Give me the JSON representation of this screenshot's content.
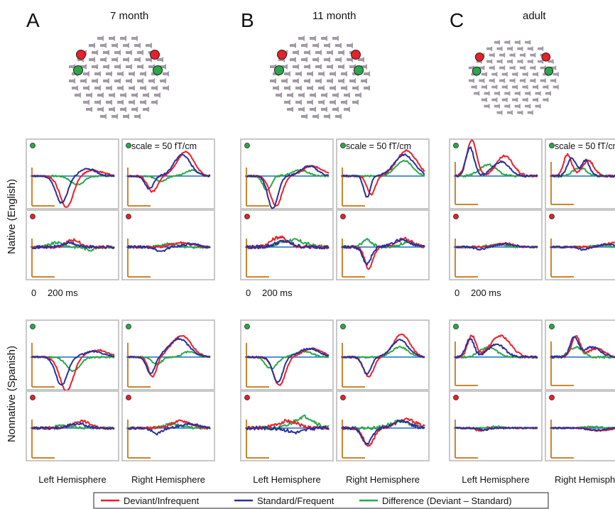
{
  "panel_letters": [
    "A",
    "B",
    "C"
  ],
  "ages": [
    "7 month",
    "11 month",
    "adult"
  ],
  "row_groups": [
    "Native (English)",
    "Nonnative (Spanish)"
  ],
  "scale_label": "scale = 50 fT/cm",
  "time_axis": {
    "zero": "0",
    "mark": "200 ms"
  },
  "hemispheres": [
    "Left Hemisphere",
    "Right Hemisphere"
  ],
  "legend": [
    {
      "label": "Deviant/Infrequent",
      "color": "#e8202a"
    },
    {
      "label": "Standard/Frequent",
      "color": "#2b2f9c"
    },
    {
      "label": "Difference (Deviant – Standard)",
      "color": "#2aa84a"
    }
  ],
  "colors": {
    "sensor": "#a39aa6",
    "axis_bar": "#c98630",
    "baseline": "#1f6fb5",
    "frame": "#c8c8c8",
    "marker_green": "#2aa84a",
    "marker_red": "#e8202a"
  },
  "chart_data": {
    "type": "line",
    "description_units": "normalized amplitude, time in ms",
    "x_range_ms": [
      -100,
      500
    ],
    "series_names": [
      "Deviant/Infrequent",
      "Standard/Frequent",
      "Difference (Deviant – Standard)"
    ]
  }
}
